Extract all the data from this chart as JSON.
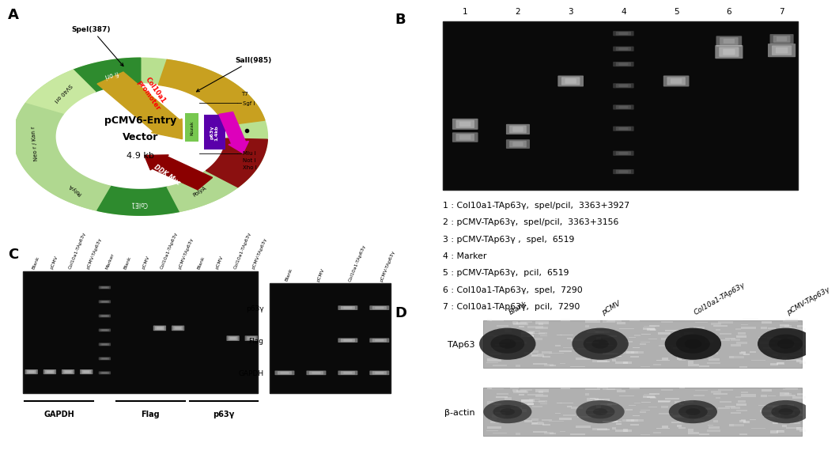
{
  "panel_labels": [
    "A",
    "B",
    "C",
    "D"
  ],
  "background_color": "#ffffff",
  "panel_B": {
    "lane_numbers": [
      "1",
      "2",
      "3",
      "4",
      "5",
      "6",
      "7"
    ],
    "legend_lines": [
      "1 : Col10a1-TAp63γ,  speI/pciI,  3363+3927",
      "2 : pCMV-TAp63γ,  speI/pciI,  3363+3156",
      "3 : pCMV-TAp63γ ,  speI,  6519",
      "4 : Marker",
      "5 : pCMV-TAp63γ,  pciI,  6519",
      "6 : Col10a1-TAp63γ,  speI,  7290",
      "7 : Col10a1-TAp63γ,  pciI,  7290"
    ]
  },
  "panel_C": {
    "col_labels": [
      "Blank",
      "pCMV",
      "Col10a1-TAp63γ",
      "pCMV-TAp63γ"
    ],
    "section_labels": [
      "GAPDH",
      "Flag",
      "p63γ"
    ],
    "right_row_labels": [
      "p63γ",
      "Flag",
      "GAPDH"
    ],
    "right_col_labels": [
      "Blank",
      "pCMV",
      "Col10a1-TAp63γ",
      "pCMV-TAp63γ"
    ]
  },
  "panel_D": {
    "col_labels": [
      "Blank",
      "pCMV",
      "Col10a1-TAp63γ",
      "pCMV-TAp63γ"
    ],
    "row_labels": [
      "TAp63",
      "β-actin"
    ]
  }
}
